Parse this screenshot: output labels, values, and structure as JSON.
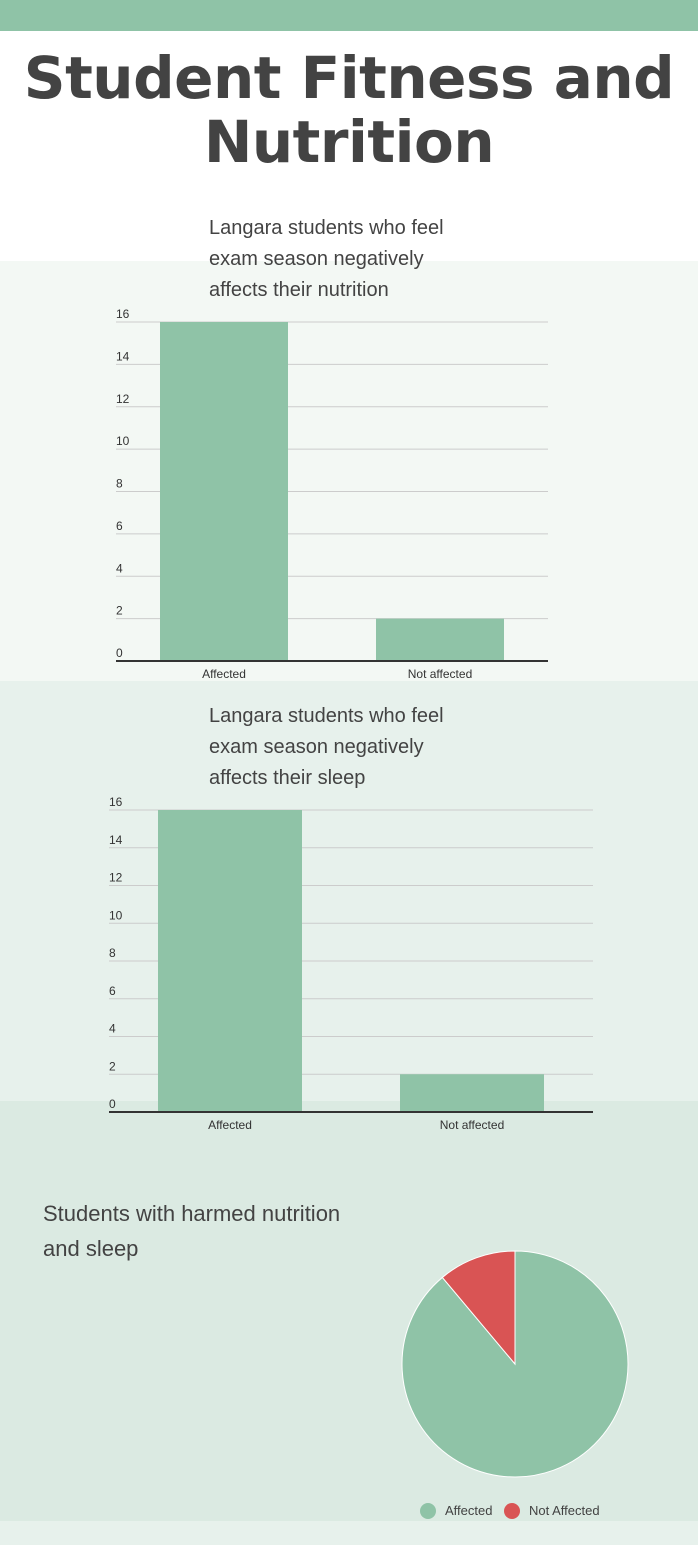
{
  "page": {
    "title": "Student Fitness and Nutrition",
    "colors": {
      "accent": "#8fc3a7",
      "negative": "#d95454",
      "section1_bg": "#f3f8f4",
      "section2_bg": "#e7f1ec",
      "section3_bg": "#dbeae2",
      "grid": "#cccccc",
      "axis": "#333333"
    }
  },
  "chart_data": [
    {
      "type": "bar",
      "title": "Langara students who feel exam season negatively affects their nutrition",
      "categories": [
        "Affected",
        "Not affected"
      ],
      "values": [
        16,
        2
      ],
      "ylim": [
        0,
        16
      ],
      "yticks": [
        0,
        2,
        4,
        6,
        8,
        10,
        12,
        14,
        16
      ],
      "grid": true,
      "xlabel": "",
      "ylabel": ""
    },
    {
      "type": "bar",
      "title": "Langara students who feel exam season negatively affects their sleep",
      "categories": [
        "Affected",
        "Not affected"
      ],
      "values": [
        16,
        2
      ],
      "ylim": [
        0,
        16
      ],
      "yticks": [
        0,
        2,
        4,
        6,
        8,
        10,
        12,
        14,
        16
      ],
      "grid": true,
      "xlabel": "",
      "ylabel": ""
    },
    {
      "type": "pie",
      "title": "Students with harmed nutrition and sleep",
      "categories": [
        "Affected",
        "Not Affected"
      ],
      "values": [
        16,
        2
      ],
      "legend": "bottom"
    }
  ]
}
